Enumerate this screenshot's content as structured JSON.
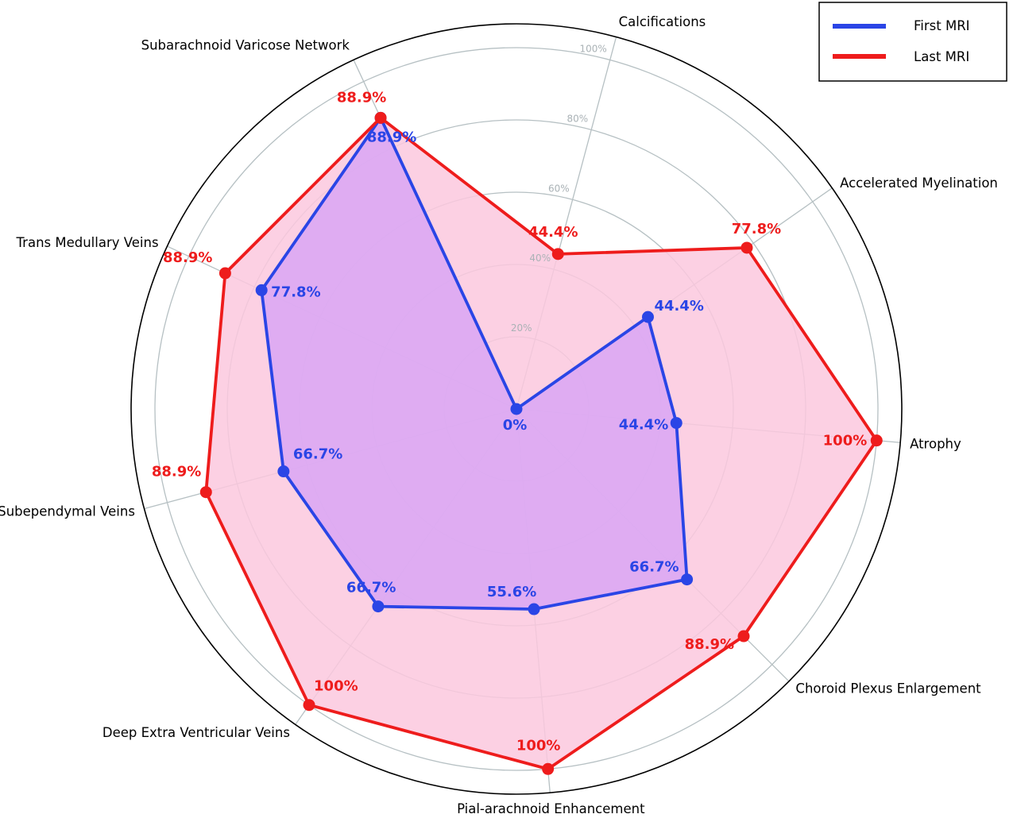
{
  "chart_data": {
    "type": "radar",
    "categories": [
      "Atrophy",
      "Choroid Plexus Enlargement",
      "Pial-arachnoid Enhancement",
      "Deep Extra Ventricular Veins",
      "Subependymal Veins",
      "Trans Medullary Veins",
      "Subarachnoid Varicose Network",
      "Calcifications",
      "Accelerated Myelination"
    ],
    "series": [
      {
        "name": "First MRI",
        "color": "#2a45e6",
        "fill": "#d9a6f5",
        "values": [
          44.4,
          66.7,
          55.6,
          66.7,
          66.7,
          77.8,
          88.9,
          0,
          44.4
        ],
        "labels": [
          "44.4%",
          "66.7%",
          "55.6%",
          "66.7%",
          "66.7%",
          "77.8%",
          "88.9%",
          "0%",
          "44.4%"
        ]
      },
      {
        "name": "Last MRI",
        "color": "#ee1c1c",
        "fill": "#fcc8de",
        "values": [
          100,
          88.9,
          100,
          100,
          88.9,
          88.9,
          88.9,
          44.4,
          77.8
        ],
        "labels": [
          "100%",
          "88.9%",
          "100%",
          "100%",
          "88.9%",
          "88.9%",
          "88.9%",
          "44.4%",
          "77.8%"
        ]
      }
    ],
    "r_ticks": [
      20,
      40,
      60,
      80,
      100
    ],
    "r_tick_labels": [
      "20%",
      "40%",
      "60%",
      "80%",
      "100%"
    ],
    "rlim": [
      0,
      100
    ],
    "grid": true,
    "legend_position": "top-right",
    "title": ""
  }
}
